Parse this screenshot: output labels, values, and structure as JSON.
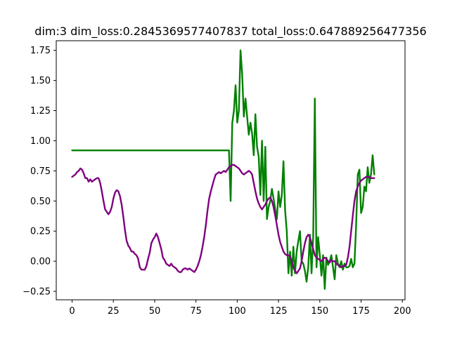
{
  "chart_data": {
    "type": "line",
    "title": "dim:3 dim_loss:0.2845369577407837 total_loss:0.647889256477356",
    "xlabel": "",
    "ylabel": "",
    "xlim": [
      -9.6,
      201.6
    ],
    "ylim": [
      -0.32,
      1.83
    ],
    "x_ticks": [
      0,
      25,
      50,
      75,
      100,
      125,
      150,
      175,
      200
    ],
    "y_ticks": [
      -0.25,
      0.0,
      0.25,
      0.5,
      0.75,
      1.0,
      1.25,
      1.5,
      1.75
    ],
    "x_tick_labels": [
      "0",
      "25",
      "50",
      "75",
      "100",
      "125",
      "150",
      "175",
      "200"
    ],
    "y_tick_labels": [
      "−0.25",
      "0.00",
      "0.25",
      "0.50",
      "0.75",
      "1.00",
      "1.25",
      "1.50",
      "1.75"
    ],
    "grid": false,
    "legend": "none",
    "series": [
      {
        "color": "#008000",
        "points": [
          [
            0,
            0.92
          ],
          [
            95,
            0.92
          ],
          [
            96,
            0.5
          ],
          [
            97,
            1.15
          ],
          [
            98,
            1.25
          ],
          [
            99,
            1.46
          ],
          [
            100,
            1.15
          ],
          [
            101,
            1.25
          ],
          [
            102,
            1.75
          ],
          [
            103,
            1.55
          ],
          [
            104,
            1.2
          ],
          [
            105,
            1.35
          ],
          [
            106,
            1.2
          ],
          [
            107,
            1.05
          ],
          [
            108,
            1.15
          ],
          [
            109,
            1.06
          ],
          [
            110,
            0.88
          ],
          [
            111,
            1.22
          ],
          [
            112,
            0.95
          ],
          [
            113,
            0.87
          ],
          [
            114,
            0.55
          ],
          [
            115,
            1.0
          ],
          [
            116,
            0.5
          ],
          [
            117,
            0.95
          ],
          [
            118,
            0.35
          ],
          [
            119,
            0.45
          ],
          [
            120,
            0.5
          ],
          [
            121,
            0.6
          ],
          [
            122,
            0.52
          ],
          [
            123,
            0.43
          ],
          [
            124,
            0.35
          ],
          [
            125,
            0.58
          ],
          [
            126,
            0.45
          ],
          [
            127,
            0.55
          ],
          [
            128,
            0.83
          ],
          [
            129,
            0.42
          ],
          [
            130,
            0.25
          ],
          [
            131,
            -0.1
          ],
          [
            132,
            0.08
          ],
          [
            133,
            -0.12
          ],
          [
            134,
            0.12
          ],
          [
            135,
            -0.1
          ],
          [
            136,
            0.08
          ],
          [
            137,
            0.17
          ],
          [
            138,
            0.25
          ],
          [
            139,
            0.0
          ],
          [
            140,
            -0.02
          ],
          [
            141,
            -0.08
          ],
          [
            142,
            -0.17
          ],
          [
            143,
            -0.05
          ],
          [
            144,
            0.22
          ],
          [
            145,
            -0.1
          ],
          [
            146,
            0.2
          ],
          [
            147,
            1.35
          ],
          [
            148,
            -0.05
          ],
          [
            149,
            0.2
          ],
          [
            150,
            0.05
          ],
          [
            151,
            -0.12
          ],
          [
            152,
            0.05
          ],
          [
            153,
            -0.23
          ],
          [
            154,
            0.03
          ],
          [
            155,
            -0.03
          ],
          [
            156,
            0.0
          ],
          [
            157,
            0.05
          ],
          [
            158,
            -0.05
          ],
          [
            159,
            -0.15
          ],
          [
            160,
            0.05
          ],
          [
            161,
            -0.02
          ],
          [
            162,
            -0.05
          ],
          [
            163,
            0.0
          ],
          [
            164,
            -0.07
          ],
          [
            165,
            -0.02
          ],
          [
            166,
            -0.05
          ],
          [
            167,
            -0.05
          ],
          [
            168,
            -0.04
          ],
          [
            169,
            0.02
          ],
          [
            170,
            -0.05
          ],
          [
            171,
            -0.02
          ],
          [
            172,
            0.3
          ],
          [
            173,
            0.72
          ],
          [
            174,
            0.76
          ],
          [
            175,
            0.4
          ],
          [
            176,
            0.45
          ],
          [
            177,
            0.62
          ],
          [
            178,
            0.58
          ],
          [
            179,
            0.78
          ],
          [
            180,
            0.65
          ],
          [
            181,
            0.72
          ],
          [
            182,
            0.88
          ],
          [
            183,
            0.72
          ]
        ]
      },
      {
        "color": "#800080",
        "points": [
          [
            0,
            0.7
          ],
          [
            1,
            0.71
          ],
          [
            2,
            0.72
          ],
          [
            3,
            0.74
          ],
          [
            4,
            0.75
          ],
          [
            5,
            0.77
          ],
          [
            6,
            0.76
          ],
          [
            7,
            0.73
          ],
          [
            8,
            0.69
          ],
          [
            9,
            0.69
          ],
          [
            10,
            0.66
          ],
          [
            11,
            0.68
          ],
          [
            12,
            0.66
          ],
          [
            13,
            0.67
          ],
          [
            14,
            0.68
          ],
          [
            15,
            0.69
          ],
          [
            16,
            0.69
          ],
          [
            17,
            0.65
          ],
          [
            18,
            0.58
          ],
          [
            19,
            0.5
          ],
          [
            20,
            0.43
          ],
          [
            21,
            0.41
          ],
          [
            22,
            0.39
          ],
          [
            23,
            0.41
          ],
          [
            24,
            0.45
          ],
          [
            25,
            0.52
          ],
          [
            26,
            0.57
          ],
          [
            27,
            0.59
          ],
          [
            28,
            0.58
          ],
          [
            29,
            0.54
          ],
          [
            30,
            0.47
          ],
          [
            31,
            0.37
          ],
          [
            32,
            0.26
          ],
          [
            33,
            0.17
          ],
          [
            34,
            0.13
          ],
          [
            35,
            0.11
          ],
          [
            36,
            0.08
          ],
          [
            37,
            0.08
          ],
          [
            38,
            0.06
          ],
          [
            39,
            0.05
          ],
          [
            40,
            0.02
          ],
          [
            41,
            -0.05
          ],
          [
            42,
            -0.07
          ],
          [
            43,
            -0.07
          ],
          [
            44,
            -0.07
          ],
          [
            45,
            -0.04
          ],
          [
            46,
            0.02
          ],
          [
            47,
            0.07
          ],
          [
            48,
            0.15
          ],
          [
            49,
            0.18
          ],
          [
            50,
            0.2
          ],
          [
            51,
            0.23
          ],
          [
            52,
            0.2
          ],
          [
            53,
            0.15
          ],
          [
            54,
            0.1
          ],
          [
            55,
            0.03
          ],
          [
            56,
            0.01
          ],
          [
            57,
            -0.02
          ],
          [
            58,
            -0.03
          ],
          [
            59,
            -0.04
          ],
          [
            60,
            -0.02
          ],
          [
            61,
            -0.04
          ],
          [
            62,
            -0.05
          ],
          [
            63,
            -0.06
          ],
          [
            64,
            -0.08
          ],
          [
            65,
            -0.09
          ],
          [
            66,
            -0.09
          ],
          [
            67,
            -0.07
          ],
          [
            68,
            -0.06
          ],
          [
            69,
            -0.06
          ],
          [
            70,
            -0.07
          ],
          [
            71,
            -0.06
          ],
          [
            72,
            -0.07
          ],
          [
            73,
            -0.08
          ],
          [
            74,
            -0.09
          ],
          [
            75,
            -0.07
          ],
          [
            76,
            -0.04
          ],
          [
            77,
            0.0
          ],
          [
            78,
            0.05
          ],
          [
            79,
            0.12
          ],
          [
            80,
            0.2
          ],
          [
            81,
            0.3
          ],
          [
            82,
            0.42
          ],
          [
            83,
            0.52
          ],
          [
            84,
            0.58
          ],
          [
            85,
            0.63
          ],
          [
            86,
            0.68
          ],
          [
            87,
            0.72
          ],
          [
            88,
            0.73
          ],
          [
            89,
            0.74
          ],
          [
            90,
            0.73
          ],
          [
            91,
            0.74
          ],
          [
            92,
            0.75
          ],
          [
            93,
            0.74
          ],
          [
            94,
            0.76
          ],
          [
            95,
            0.78
          ],
          [
            96,
            0.79
          ],
          [
            97,
            0.8
          ],
          [
            98,
            0.8
          ],
          [
            99,
            0.79
          ],
          [
            100,
            0.78
          ],
          [
            101,
            0.77
          ],
          [
            102,
            0.75
          ],
          [
            103,
            0.73
          ],
          [
            104,
            0.72
          ],
          [
            105,
            0.73
          ],
          [
            106,
            0.74
          ],
          [
            107,
            0.75
          ],
          [
            108,
            0.74
          ],
          [
            109,
            0.72
          ],
          [
            110,
            0.65
          ],
          [
            111,
            0.58
          ],
          [
            112,
            0.52
          ],
          [
            113,
            0.48
          ],
          [
            114,
            0.45
          ],
          [
            115,
            0.43
          ],
          [
            116,
            0.45
          ],
          [
            117,
            0.47
          ],
          [
            118,
            0.5
          ],
          [
            119,
            0.52
          ],
          [
            120,
            0.53
          ],
          [
            121,
            0.5
          ],
          [
            122,
            0.45
          ],
          [
            123,
            0.38
          ],
          [
            124,
            0.3
          ],
          [
            125,
            0.22
          ],
          [
            126,
            0.16
          ],
          [
            127,
            0.12
          ],
          [
            128,
            0.08
          ],
          [
            129,
            0.06
          ],
          [
            130,
            0.05
          ],
          [
            131,
            0.05
          ],
          [
            132,
            0.04
          ],
          [
            133,
            0.0
          ],
          [
            134,
            -0.05
          ],
          [
            135,
            -0.08
          ],
          [
            136,
            -0.1
          ],
          [
            137,
            -0.08
          ],
          [
            138,
            -0.06
          ],
          [
            139,
            0.0
          ],
          [
            140,
            0.08
          ],
          [
            141,
            0.15
          ],
          [
            142,
            0.2
          ],
          [
            143,
            0.22
          ],
          [
            144,
            0.2
          ],
          [
            145,
            0.15
          ],
          [
            146,
            0.1
          ],
          [
            147,
            0.05
          ],
          [
            148,
            0.03
          ],
          [
            149,
            0.02
          ],
          [
            150,
            0.01
          ],
          [
            151,
            0.0
          ],
          [
            152,
            0.02
          ],
          [
            153,
            0.03
          ],
          [
            154,
            0.02
          ],
          [
            155,
            0.0
          ],
          [
            156,
            -0.01
          ],
          [
            157,
            0.01
          ],
          [
            158,
            0.0
          ],
          [
            159,
            0.0
          ],
          [
            160,
            -0.02
          ],
          [
            161,
            -0.03
          ],
          [
            162,
            -0.04
          ],
          [
            163,
            -0.05
          ],
          [
            164,
            -0.04
          ],
          [
            165,
            -0.04
          ],
          [
            166,
            -0.03
          ],
          [
            167,
            0.03
          ],
          [
            168,
            0.12
          ],
          [
            169,
            0.25
          ],
          [
            170,
            0.38
          ],
          [
            171,
            0.5
          ],
          [
            172,
            0.58
          ],
          [
            173,
            0.62
          ],
          [
            174,
            0.65
          ],
          [
            175,
            0.67
          ],
          [
            176,
            0.68
          ],
          [
            177,
            0.69
          ],
          [
            178,
            0.7
          ],
          [
            179,
            0.7
          ],
          [
            180,
            0.7
          ],
          [
            181,
            0.69
          ],
          [
            182,
            0.69
          ],
          [
            183,
            0.69
          ]
        ]
      }
    ]
  }
}
